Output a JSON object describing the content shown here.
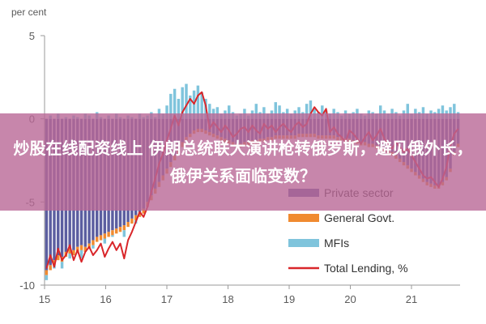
{
  "chart_data": {
    "type": "bar",
    "ylabel": "per cent",
    "ylim": [
      -10,
      5
    ],
    "yticks": [
      "5",
      "0",
      "-5",
      "-10"
    ],
    "xticks": [
      "15",
      "16",
      "17",
      "18",
      "19",
      "20",
      "21"
    ],
    "grid": false,
    "legend_position": "bottom-right",
    "colors": {
      "private_sector": "#5b5ea0",
      "general_govt": "#f08a30",
      "mfis": "#7fc4dc",
      "total_lending": "#d9262a"
    },
    "series": [
      {
        "name": "Private sector",
        "kind": "bar",
        "values": [
          -9.1,
          -8.8,
          -8.5,
          -8.2,
          -8.3,
          -8.0,
          -7.8,
          -7.9,
          -7.7,
          -7.6,
          -7.7,
          -7.5,
          -7.3,
          -7.1,
          -7.0,
          -6.9,
          -6.8,
          -6.7,
          -6.6,
          -6.5,
          -6.4,
          -6.2,
          -6.0,
          -5.8,
          -5.6,
          -5.4,
          -5.0,
          -4.6,
          -4.2,
          -3.8,
          -3.4,
          -3.0,
          -2.6,
          -2.2,
          -1.8,
          -1.4,
          -1.1,
          -0.9,
          -0.7,
          -0.6,
          -0.6,
          -0.7,
          -0.8,
          -0.9,
          -1.0,
          -1.1,
          -1.2,
          -1.3,
          -1.4,
          -1.5,
          -1.5,
          -1.4,
          -1.4,
          -1.3,
          -1.3,
          -1.2,
          -1.2,
          -1.1,
          -1.1,
          -1.0,
          -1.0,
          -1.0,
          -1.0,
          -1.0,
          -1.0,
          -0.9,
          -0.9,
          -0.9,
          -0.9,
          -0.9,
          -1.0,
          -1.0,
          -1.0,
          -1.0,
          -1.0,
          -1.1,
          -1.1,
          -1.2,
          -1.2,
          -1.3,
          -1.3,
          -1.4,
          -1.4,
          -1.5,
          -1.5,
          -1.6,
          -1.7,
          -1.8,
          -1.9,
          -2.0,
          -2.2,
          -2.4,
          -2.6,
          -2.8,
          -3.0,
          -3.2,
          -3.4,
          -3.6,
          -3.8,
          -3.9,
          -4.0,
          -4.0,
          -3.8,
          -3.5,
          -3.0,
          -2.0,
          -1.5
        ]
      },
      {
        "name": "General Govt.",
        "kind": "bar",
        "values": [
          -0.3,
          -0.3,
          -0.3,
          -0.3,
          -0.3,
          -0.3,
          -0.3,
          -0.3,
          -0.3,
          -0.3,
          -0.3,
          -0.3,
          -0.3,
          -0.3,
          -0.3,
          -0.3,
          -0.3,
          -0.3,
          -0.3,
          -0.3,
          -0.3,
          -0.3,
          -0.3,
          -0.3,
          -0.3,
          -0.3,
          -0.3,
          -0.3,
          -0.3,
          -0.3,
          -0.3,
          -0.3,
          -0.3,
          -0.3,
          -0.3,
          -0.3,
          -0.2,
          -0.2,
          -0.2,
          -0.2,
          -0.2,
          -0.2,
          -0.2,
          -0.2,
          -0.2,
          -0.2,
          -0.2,
          -0.2,
          -0.2,
          -0.2,
          -0.2,
          -0.2,
          -0.2,
          -0.2,
          -0.2,
          -0.2,
          -0.2,
          -0.2,
          -0.2,
          -0.2,
          -0.2,
          -0.2,
          -0.2,
          -0.2,
          -0.2,
          -0.2,
          -0.2,
          -0.2,
          -0.2,
          -0.2,
          -0.2,
          -0.2,
          -0.2,
          -0.2,
          -0.2,
          -0.2,
          -0.2,
          -0.2,
          -0.2,
          -0.2,
          -0.2,
          -0.2,
          -0.2,
          -0.2,
          -0.2,
          -0.2,
          -0.2,
          -0.2,
          -0.2,
          -0.2,
          -0.2,
          -0.2,
          -0.2,
          -0.2,
          -0.2,
          -0.2,
          -0.2,
          -0.2,
          -0.2,
          -0.2,
          -0.2,
          -0.2,
          -0.2,
          -0.2,
          -0.2,
          -0.2,
          -0.2
        ]
      },
      {
        "name": "MFIs",
        "kind": "bar",
        "values": [
          -0.3,
          0.2,
          -0.2,
          0.3,
          -0.4,
          0.1,
          -0.3,
          0.2,
          0.1,
          -0.5,
          0.3,
          0.2,
          -0.2,
          0.4,
          0.1,
          -0.3,
          0.2,
          -0.1,
          0.3,
          0.1,
          -0.4,
          0.2,
          0.1,
          -0.2,
          0.3,
          0.1,
          0.2,
          0.4,
          0.1,
          0.6,
          0.3,
          0.8,
          1.5,
          1.8,
          1.2,
          1.9,
          2.1,
          1.4,
          1.7,
          2.0,
          1.6,
          1.2,
          0.9,
          0.6,
          0.7,
          0.3,
          0.5,
          0.8,
          0.4,
          0.2,
          0.3,
          0.6,
          0.2,
          0.5,
          0.9,
          0.4,
          0.7,
          0.3,
          0.5,
          1.0,
          0.8,
          0.4,
          0.6,
          0.3,
          0.5,
          0.7,
          0.4,
          0.9,
          1.1,
          0.6,
          0.4,
          0.8,
          0.5,
          0.3,
          0.6,
          0.4,
          0.2,
          0.5,
          0.3,
          0.4,
          0.6,
          0.3,
          0.2,
          0.5,
          0.4,
          0.3,
          0.8,
          0.5,
          0.3,
          0.6,
          0.4,
          0.2,
          0.5,
          0.9,
          0.3,
          0.6,
          0.4,
          0.7,
          0.3,
          0.5,
          0.4,
          0.6,
          0.8,
          0.5,
          0.7,
          0.9,
          0.4
        ]
      },
      {
        "name": "Total Lending, %",
        "kind": "line",
        "values": [
          -9.0,
          -8.2,
          -8.9,
          -7.8,
          -8.5,
          -8.2,
          -7.6,
          -8.5,
          -7.9,
          -8.6,
          -8.0,
          -7.7,
          -8.2,
          -7.9,
          -7.5,
          -8.3,
          -7.8,
          -7.4,
          -7.9,
          -7.5,
          -8.4,
          -7.3,
          -6.8,
          -6.2,
          -5.6,
          -5.9,
          -5.3,
          -4.4,
          -3.6,
          -2.7,
          -2.1,
          -1.3,
          -0.6,
          0.2,
          -0.4,
          0.4,
          0.8,
          1.2,
          0.9,
          1.4,
          1.6,
          0.8,
          -0.6,
          -0.2,
          -0.5,
          -0.8,
          -0.4,
          -0.7,
          -1.1,
          -0.9,
          -0.6,
          -0.5,
          -0.8,
          -0.4,
          -0.7,
          -0.9,
          -0.3,
          -0.6,
          -0.4,
          -0.8,
          -0.5,
          -0.3,
          -0.6,
          -0.8,
          -0.4,
          -0.2,
          -0.5,
          -0.3,
          0.3,
          0.7,
          0.4,
          0.2,
          0.6,
          -0.8,
          -0.5,
          -0.9,
          -1.1,
          -1.4,
          -0.7,
          -0.9,
          -1.2,
          -1.5,
          -1.1,
          -0.8,
          -1.3,
          -1.0,
          -0.6,
          -1.2,
          -1.5,
          -1.8,
          -1.4,
          -1.7,
          -2.0,
          -1.8,
          -2.2,
          -2.6,
          -3.0,
          -3.4,
          -3.6,
          -3.5,
          -3.8,
          -4.1,
          -3.6,
          -2.9,
          -1.6,
          -0.9,
          -0.6
        ]
      }
    ]
  },
  "overlay": {
    "title": "炒股在线配资线上 伊朗总统联大演讲枪转俄罗斯，避见俄外长，俄伊关系面临变数？"
  }
}
